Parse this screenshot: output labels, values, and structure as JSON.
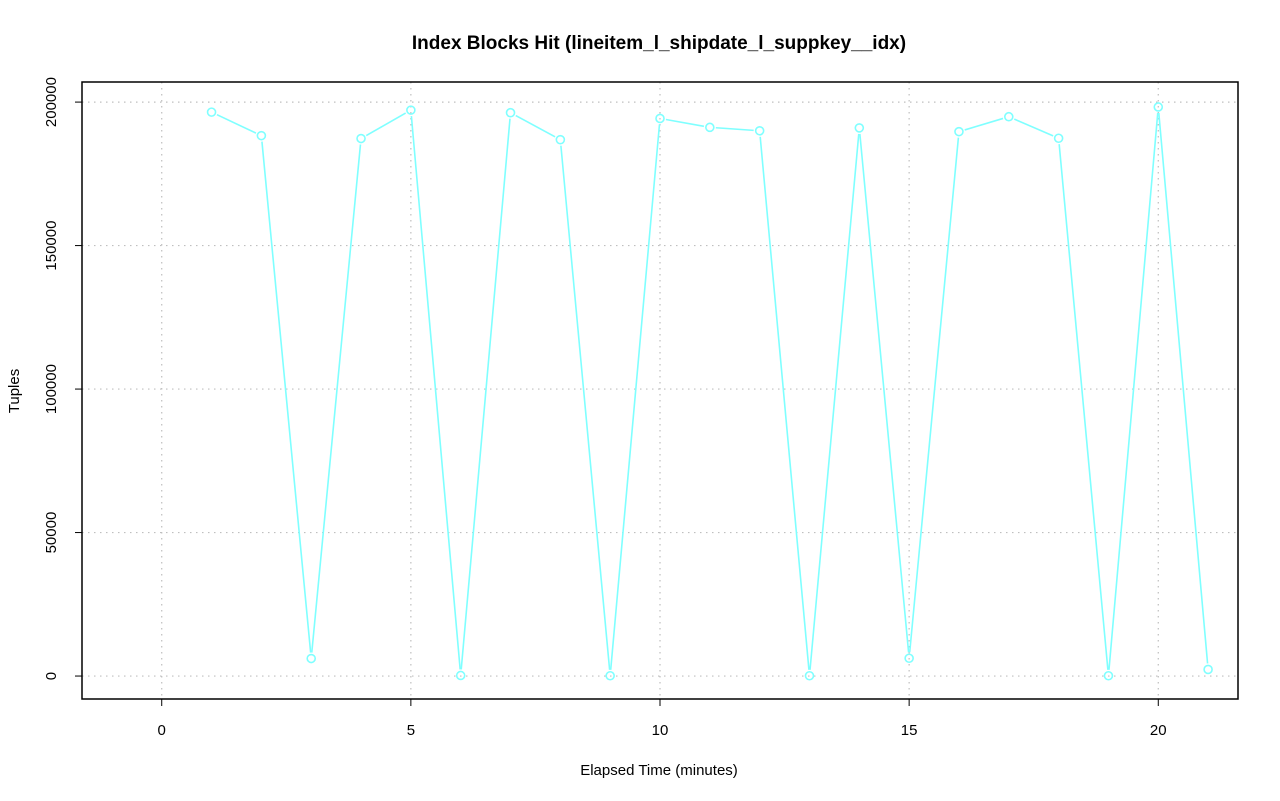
{
  "chart_data": {
    "type": "line",
    "title": "Index Blocks Hit (lineitem_l_shipdate_l_suppkey__idx)",
    "xlabel": "Elapsed Time (minutes)",
    "ylabel": "Tuples",
    "xlim": [
      -1.6,
      21.6
    ],
    "ylim": [
      -8000,
      207000
    ],
    "x_ticks": [
      0,
      5,
      10,
      15,
      20
    ],
    "x_tick_labels": [
      "0",
      "5",
      "10",
      "15",
      "20"
    ],
    "y_ticks": [
      0,
      50000,
      100000,
      150000,
      200000
    ],
    "y_tick_labels": [
      "0",
      "50000",
      "100000",
      "150000",
      "200000"
    ],
    "grid": true,
    "series_color": "#7fffff",
    "grid_color": "#bfbfbf",
    "series": [
      {
        "x": [
          1,
          2,
          3,
          4,
          5,
          6,
          7,
          8,
          9,
          10,
          11,
          12,
          13,
          14,
          15,
          16,
          17,
          18,
          19,
          20,
          21
        ],
        "values": [
          196500,
          188300,
          6100,
          187300,
          197200,
          200,
          196300,
          186900,
          100,
          194300,
          191200,
          190000,
          100,
          191000,
          6200,
          189700,
          194900,
          187400,
          100,
          198300,
          2300
        ]
      }
    ]
  }
}
